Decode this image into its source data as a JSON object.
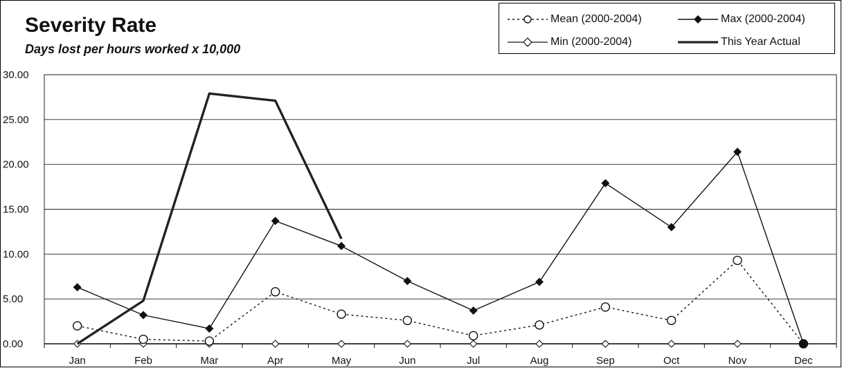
{
  "chart_data": {
    "type": "line",
    "title": "Severity Rate",
    "subtitle": "Days lost per hours worked x 10,000",
    "xlabel": "",
    "ylabel": "",
    "categories": [
      "Jan",
      "Feb",
      "Mar",
      "Apr",
      "May",
      "Jun",
      "Jul",
      "Aug",
      "Sep",
      "Oct",
      "Nov",
      "Dec"
    ],
    "ylim": [
      0,
      30
    ],
    "yticks": [
      "0.00",
      "5.00",
      "10.00",
      "15.00",
      "20.00",
      "25.00",
      "30.00"
    ],
    "grid": true,
    "legend_position": "top-right",
    "series": [
      {
        "name": "Mean (2000-2004)",
        "style": "dotted-open-circle",
        "color": "#111111",
        "values": [
          2.0,
          0.5,
          0.3,
          5.8,
          3.3,
          2.6,
          0.9,
          2.1,
          4.1,
          2.6,
          9.3,
          0.0
        ]
      },
      {
        "name": "Max (2000-2004)",
        "style": "solid-filled-diamond",
        "color": "#111111",
        "values": [
          6.3,
          3.2,
          1.7,
          13.7,
          10.9,
          7.0,
          3.7,
          6.9,
          17.9,
          13.0,
          21.4,
          0.0
        ]
      },
      {
        "name": "Min (2000-2004)",
        "style": "solid-open-diamond",
        "color": "#111111",
        "values": [
          0.0,
          0.0,
          0.0,
          0.0,
          0.0,
          0.0,
          0.0,
          0.0,
          0.0,
          0.0,
          0.0,
          0.0
        ]
      },
      {
        "name": "This Year Actual",
        "style": "thick-solid",
        "color": "#222222",
        "values": [
          0.0,
          4.8,
          27.9,
          27.1,
          11.7,
          null,
          null,
          null,
          null,
          null,
          null,
          null
        ]
      }
    ]
  }
}
